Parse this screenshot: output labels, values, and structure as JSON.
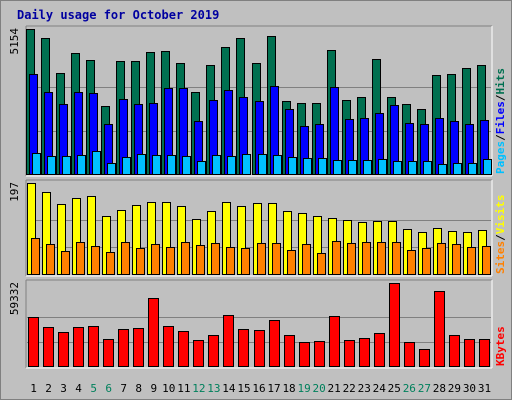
{
  "chart_data": {
    "type": "bar",
    "title": "Daily usage for October 2019",
    "categories": [
      "1",
      "2",
      "3",
      "4",
      "5",
      "6",
      "7",
      "8",
      "9",
      "10",
      "11",
      "12",
      "13",
      "14",
      "15",
      "16",
      "17",
      "18",
      "19",
      "20",
      "21",
      "22",
      "23",
      "24",
      "25",
      "26",
      "27",
      "28",
      "29",
      "30",
      "31"
    ],
    "weekend_days": [
      "5",
      "6",
      "12",
      "13",
      "19",
      "20",
      "26",
      "27"
    ],
    "colors": {
      "hits": "#007050",
      "files": "#0000ff",
      "pages": "#00c0ff",
      "visits": "#ffff00",
      "sites": "#ff8000",
      "kbytes": "#ff0000",
      "weekday_label": "#000000",
      "weekend_label": "#00805c",
      "title": "#0000a0"
    },
    "panels": [
      {
        "id": "requests",
        "ymax_label": "5154",
        "ymax": 5154,
        "legend": [
          {
            "text": "Pages",
            "color": "#00c0ff"
          },
          {
            "text": "/",
            "color": "#000000"
          },
          {
            "text": "Files",
            "color": "#0000ff"
          },
          {
            "text": "/",
            "color": "#000000"
          },
          {
            "text": "Hits",
            "color": "#007050"
          }
        ],
        "series": [
          {
            "name": "Hits",
            "color": "#007050",
            "values": [
              5154,
              4820,
              3600,
              4300,
              4050,
              2450,
              4030,
              4030,
              4340,
              4390,
              3970,
              2930,
              3880,
              4510,
              4830,
              3970,
              4900,
              2620,
              2550,
              2550,
              4410,
              2660,
              2760,
              4080,
              2760,
              2510,
              2320,
              3530,
              3560,
              3780,
              3870
            ]
          },
          {
            "name": "Files",
            "color": "#0000ff",
            "values": [
              3580,
              2920,
              2500,
              2930,
              2880,
              1800,
              2670,
              2510,
              2550,
              3060,
              3080,
              1900,
              2630,
              3000,
              2740,
              2600,
              3140,
              2340,
              1740,
              1800,
              3090,
              1980,
              2010,
              2200,
              2470,
              1850,
              1810,
              2020,
              1900,
              1800,
              1950
            ]
          },
          {
            "name": "Pages",
            "color": "#00c0ff",
            "values": [
              780,
              660,
              670,
              700,
              850,
              430,
              640,
              730,
              720,
              720,
              660,
              510,
              700,
              680,
              740,
              740,
              700,
              620,
              610,
              600,
              520,
              540,
              520,
              550,
              490,
              480,
              480,
              390,
              430,
              430,
              580
            ]
          }
        ]
      },
      {
        "id": "visitors",
        "ymax_label": "197",
        "ymax": 197,
        "legend": [
          {
            "text": "Sites",
            "color": "#ff8000"
          },
          {
            "text": "/",
            "color": "#000000"
          },
          {
            "text": "Visits",
            "color": "#ffff00"
          }
        ],
        "series": [
          {
            "name": "Visits",
            "color": "#ffff00",
            "values": [
              197,
              178,
              152,
              164,
              170,
              126,
              140,
              149,
              157,
              157,
              147,
              119,
              138,
              156,
              147,
              154,
              154,
              137,
              132,
              126,
              122,
              118,
              113,
              116,
              116,
              99,
              92,
              101,
              95,
              93,
              96
            ]
          },
          {
            "name": "Sites",
            "color": "#ff8000",
            "values": [
              80,
              67,
              52,
              70,
              63,
              50,
              70,
              58,
              66,
              61,
              71,
              64,
              69,
              59,
              58,
              68,
              68,
              53,
              67,
              48,
              72,
              69,
              71,
              70,
              71,
              54,
              57,
              68,
              67,
              61,
              62
            ]
          }
        ]
      },
      {
        "id": "kbytes",
        "ymax_label": "59332",
        "ymax": 59332,
        "legend": [
          {
            "text": "KBytes",
            "color": "#ff0000"
          }
        ],
        "series": [
          {
            "name": "KBytes",
            "color": "#ff0000",
            "values": [
              35050,
              27950,
              24850,
              28500,
              29050,
              20050,
              26500,
              27600,
              48800,
              29100,
              25750,
              19400,
              22300,
              37000,
              26550,
              25950,
              33500,
              22950,
              17900,
              18400,
              36300,
              19300,
              20650,
              23900,
              59332,
              17600,
              12800,
              53700,
              22900,
              19900,
              20050
            ]
          }
        ]
      }
    ]
  }
}
